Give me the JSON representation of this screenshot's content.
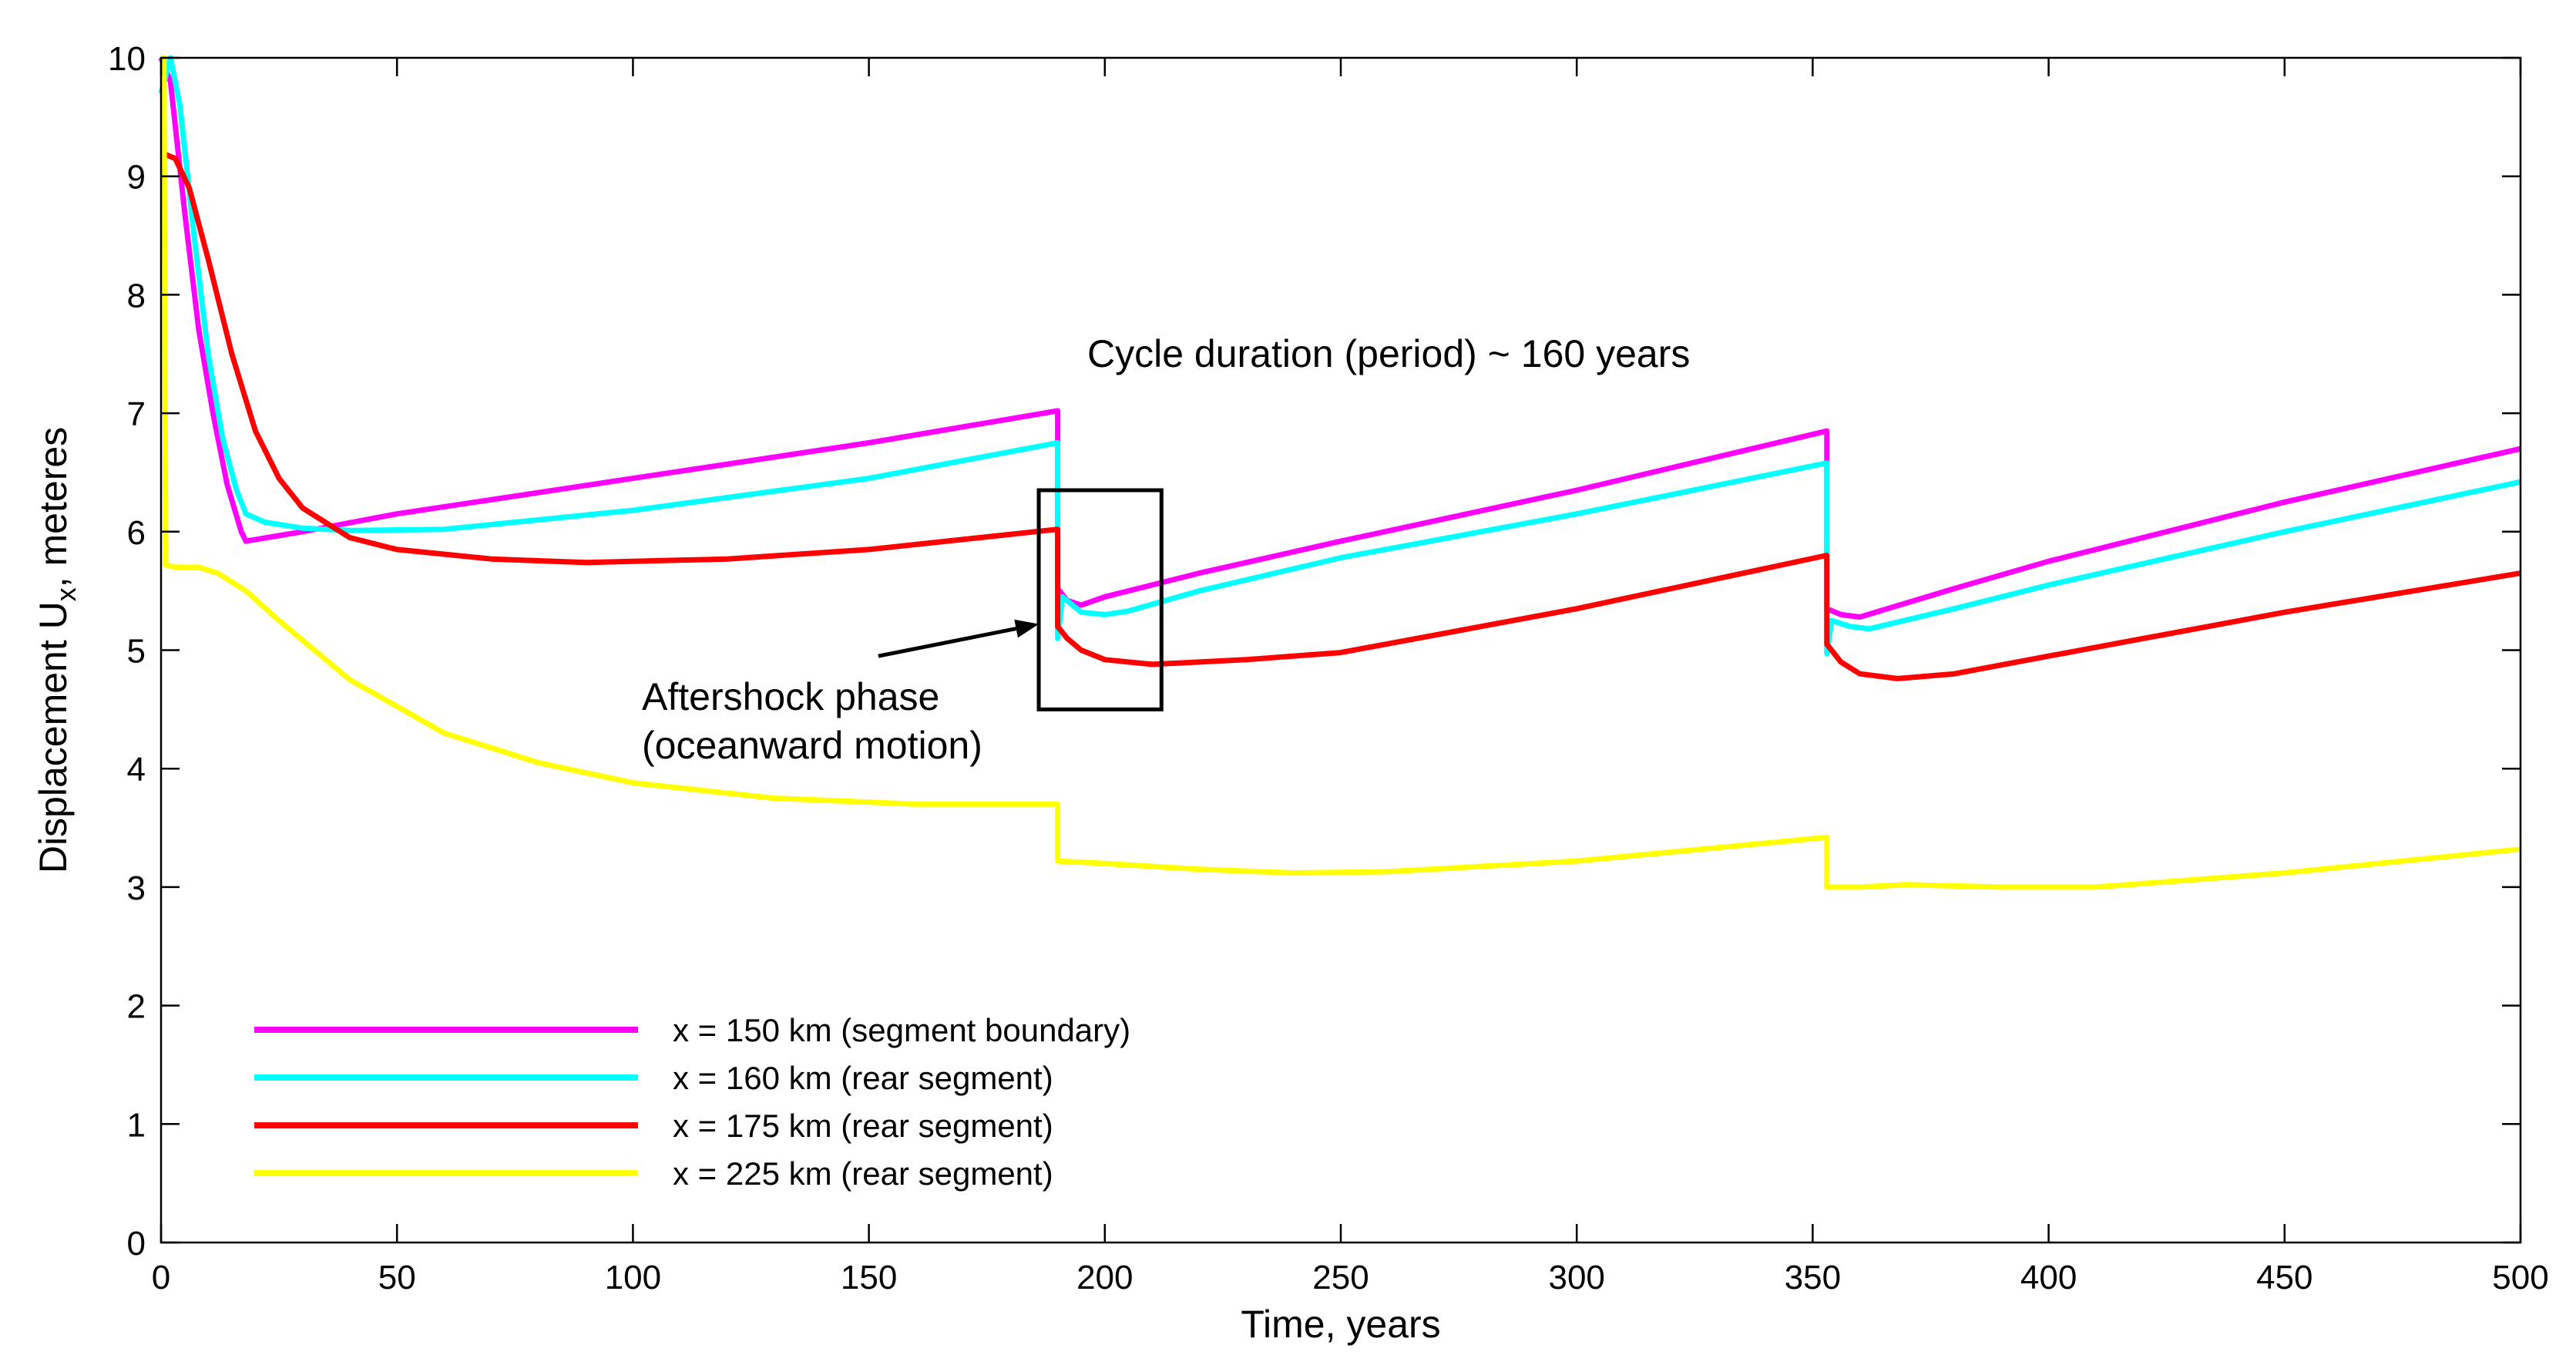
{
  "chart_data": {
    "type": "line",
    "title": "",
    "xlabel": "Time, years",
    "ylabel_main": "Displacement U",
    "ylabel_sub": "x",
    "ylabel_tail": ", meteres",
    "xlim": [
      0,
      500
    ],
    "ylim": [
      0,
      10
    ],
    "xticks": [
      0,
      50,
      100,
      150,
      200,
      250,
      300,
      350,
      400,
      450,
      500
    ],
    "yticks": [
      0,
      1,
      2,
      3,
      4,
      5,
      6,
      7,
      8,
      9,
      10
    ],
    "grid": false,
    "legend_position": "bottom-left",
    "annotations": {
      "cycle": "Cycle duration (period) ~ 160 years",
      "aftershock_line1": "Aftershock phase",
      "aftershock_line2": "(oceanward motion)",
      "box": {
        "x0": 186,
        "x1": 212,
        "y0": 4.5,
        "y1": 6.35
      },
      "arrow_from": [
        152,
        4.95
      ],
      "arrow_to": [
        186,
        5.22
      ]
    },
    "series": [
      {
        "name": "x = 150 km (segment boundary)",
        "color": "#ff00ff",
        "points": [
          [
            0,
            10
          ],
          [
            2,
            9.8
          ],
          [
            5,
            8.7
          ],
          [
            8,
            7.7
          ],
          [
            11,
            7
          ],
          [
            14,
            6.4
          ],
          [
            17,
            6
          ],
          [
            18,
            5.92
          ],
          [
            30,
            6
          ],
          [
            50,
            6.15
          ],
          [
            100,
            6.45
          ],
          [
            150,
            6.75
          ],
          [
            190,
            7.02
          ],
          [
            190,
            5.52
          ],
          [
            192,
            5.42
          ],
          [
            195,
            5.38
          ],
          [
            200,
            5.45
          ],
          [
            220,
            5.65
          ],
          [
            250,
            5.92
          ],
          [
            300,
            6.35
          ],
          [
            353,
            6.85
          ],
          [
            353,
            5.35
          ],
          [
            356,
            5.3
          ],
          [
            360,
            5.28
          ],
          [
            380,
            5.52
          ],
          [
            400,
            5.75
          ],
          [
            450,
            6.25
          ],
          [
            500,
            6.7
          ]
        ]
      },
      {
        "name": "x = 160 km (rear segment)",
        "color": "#00ffff",
        "points": [
          [
            0,
            9.7
          ],
          [
            2,
            10
          ],
          [
            4,
            9.6
          ],
          [
            7,
            8.5
          ],
          [
            10,
            7.5
          ],
          [
            13,
            6.8
          ],
          [
            16,
            6.35
          ],
          [
            18,
            6.15
          ],
          [
            22,
            6.08
          ],
          [
            30,
            6.03
          ],
          [
            40,
            6.01
          ],
          [
            60,
            6.02
          ],
          [
            100,
            6.18
          ],
          [
            150,
            6.45
          ],
          [
            190,
            6.75
          ],
          [
            190,
            5.1
          ],
          [
            191,
            5.45
          ],
          [
            195,
            5.32
          ],
          [
            200,
            5.3
          ],
          [
            205,
            5.33
          ],
          [
            220,
            5.5
          ],
          [
            250,
            5.78
          ],
          [
            300,
            6.15
          ],
          [
            353,
            6.58
          ],
          [
            353,
            4.97
          ],
          [
            354,
            5.25
          ],
          [
            358,
            5.2
          ],
          [
            362,
            5.18
          ],
          [
            380,
            5.35
          ],
          [
            400,
            5.55
          ],
          [
            450,
            6.0
          ],
          [
            500,
            6.42
          ]
        ]
      },
      {
        "name": "x = 175 km (rear segment)",
        "color": "#ff0000",
        "points": [
          [
            0,
            9.2
          ],
          [
            3,
            9.15
          ],
          [
            6,
            8.9
          ],
          [
            10,
            8.3
          ],
          [
            15,
            7.5
          ],
          [
            20,
            6.85
          ],
          [
            25,
            6.45
          ],
          [
            30,
            6.2
          ],
          [
            40,
            5.95
          ],
          [
            50,
            5.85
          ],
          [
            70,
            5.77
          ],
          [
            90,
            5.74
          ],
          [
            120,
            5.77
          ],
          [
            150,
            5.85
          ],
          [
            190,
            6.02
          ],
          [
            190,
            5.2
          ],
          [
            192,
            5.1
          ],
          [
            195,
            5.0
          ],
          [
            200,
            4.92
          ],
          [
            210,
            4.88
          ],
          [
            230,
            4.92
          ],
          [
            250,
            4.98
          ],
          [
            300,
            5.35
          ],
          [
            353,
            5.8
          ],
          [
            353,
            5.05
          ],
          [
            356,
            4.9
          ],
          [
            360,
            4.8
          ],
          [
            368,
            4.76
          ],
          [
            380,
            4.8
          ],
          [
            400,
            4.95
          ],
          [
            450,
            5.32
          ],
          [
            500,
            5.65
          ]
        ]
      },
      {
        "name": "x = 225 km (rear segment)",
        "color": "#ffff00",
        "points": [
          [
            0,
            10
          ],
          [
            0.6,
            10
          ],
          [
            1,
            5.72
          ],
          [
            3,
            5.7
          ],
          [
            8,
            5.7
          ],
          [
            12,
            5.65
          ],
          [
            18,
            5.5
          ],
          [
            25,
            5.25
          ],
          [
            40,
            4.75
          ],
          [
            60,
            4.3
          ],
          [
            80,
            4.05
          ],
          [
            100,
            3.88
          ],
          [
            130,
            3.75
          ],
          [
            160,
            3.7
          ],
          [
            190,
            3.7
          ],
          [
            190,
            3.22
          ],
          [
            200,
            3.2
          ],
          [
            220,
            3.15
          ],
          [
            240,
            3.12
          ],
          [
            260,
            3.13
          ],
          [
            300,
            3.22
          ],
          [
            353,
            3.42
          ],
          [
            353,
            3.0
          ],
          [
            360,
            3.0
          ],
          [
            370,
            3.02
          ],
          [
            390,
            3.0
          ],
          [
            410,
            3.0
          ],
          [
            450,
            3.12
          ],
          [
            500,
            3.32
          ]
        ]
      }
    ]
  }
}
